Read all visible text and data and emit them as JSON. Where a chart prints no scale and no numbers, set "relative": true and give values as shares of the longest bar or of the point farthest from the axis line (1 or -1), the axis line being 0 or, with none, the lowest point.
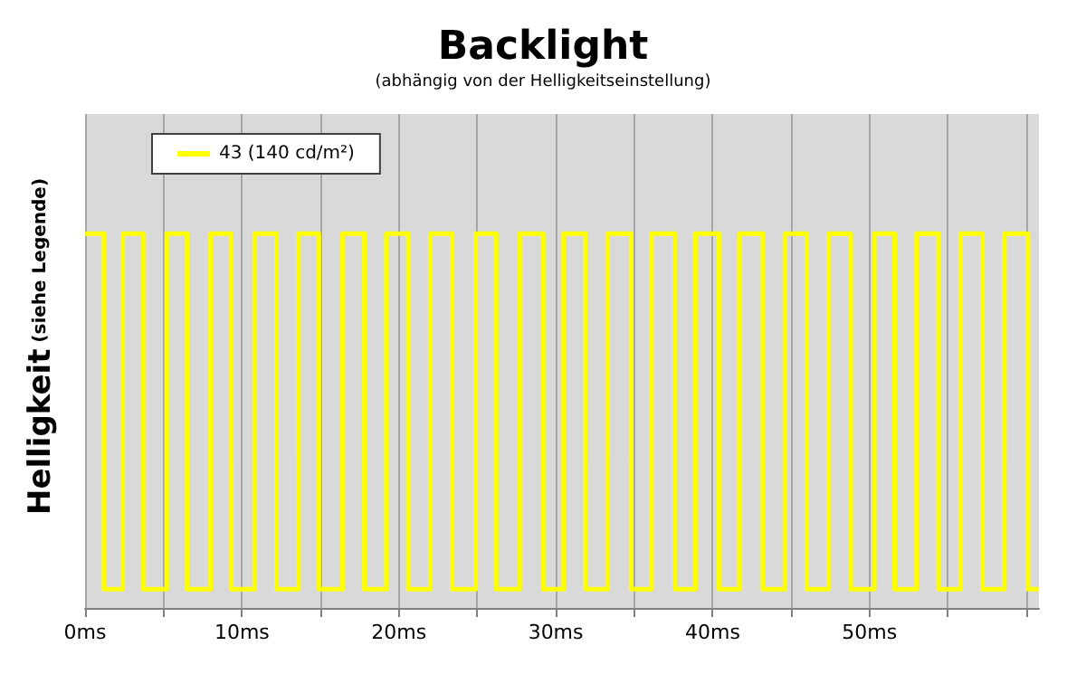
{
  "chart_data": {
    "type": "step",
    "title": "Backlight",
    "subtitle": "(abhängig von der Helligkeitseinstellung)",
    "ylabel": "Helligkeit (siehe Legende)",
    "relative": true,
    "grid": "x",
    "legend": "top left",
    "line_style": "solid",
    "marker": "none",
    "xlim": [
      0,
      60.8
    ],
    "xticks": [
      {
        "value": 0,
        "label": "0ms"
      },
      {
        "value": 5,
        "label": null
      },
      {
        "value": 10,
        "label": "10ms"
      },
      {
        "value": 15,
        "label": null
      },
      {
        "value": 20,
        "label": "20ms"
      },
      {
        "value": 25,
        "label": null
      },
      {
        "value": 30,
        "label": "30ms"
      },
      {
        "value": 35,
        "label": null
      },
      {
        "value": 40,
        "label": "40ms"
      },
      {
        "value": 45,
        "label": null
      },
      {
        "value": 50,
        "label": "50ms"
      },
      {
        "value": 55,
        "label": null
      },
      {
        "value": 60,
        "label": null
      }
    ],
    "series": [
      {
        "name": "43 (140 cd/m²)",
        "color": "#ffff00",
        "x": [
          0,
          1.2,
          2.4,
          3.7,
          5.2,
          6.5,
          8.0,
          9.3,
          10.8,
          12.2,
          13.6,
          14.9,
          16.4,
          17.8,
          19.2,
          20.6,
          22.0,
          23.4,
          24.9,
          26.2,
          27.7,
          29.2,
          30.5,
          31.9,
          33.3,
          34.8,
          36.1,
          37.6,
          38.9,
          40.4,
          41.7,
          43.2,
          44.6,
          46.0,
          47.4,
          48.8,
          50.3,
          51.6,
          53.0,
          54.4,
          55.8,
          57.2,
          58.6,
          60.1,
          60.8
        ],
        "values": [
          1,
          0.05,
          1,
          0.05,
          1,
          0.05,
          1,
          0.05,
          1,
          0.05,
          1,
          0.05,
          1,
          0.05,
          1,
          0.05,
          1,
          0.05,
          1,
          0.05,
          1,
          0.05,
          1,
          0.05,
          1,
          0.05,
          1,
          0.05,
          1,
          0.05,
          1,
          0.05,
          1,
          0.05,
          1,
          0.05,
          1,
          0.05,
          1,
          0.05,
          1,
          0.05,
          1,
          0.05,
          0.05
        ]
      }
    ]
  }
}
